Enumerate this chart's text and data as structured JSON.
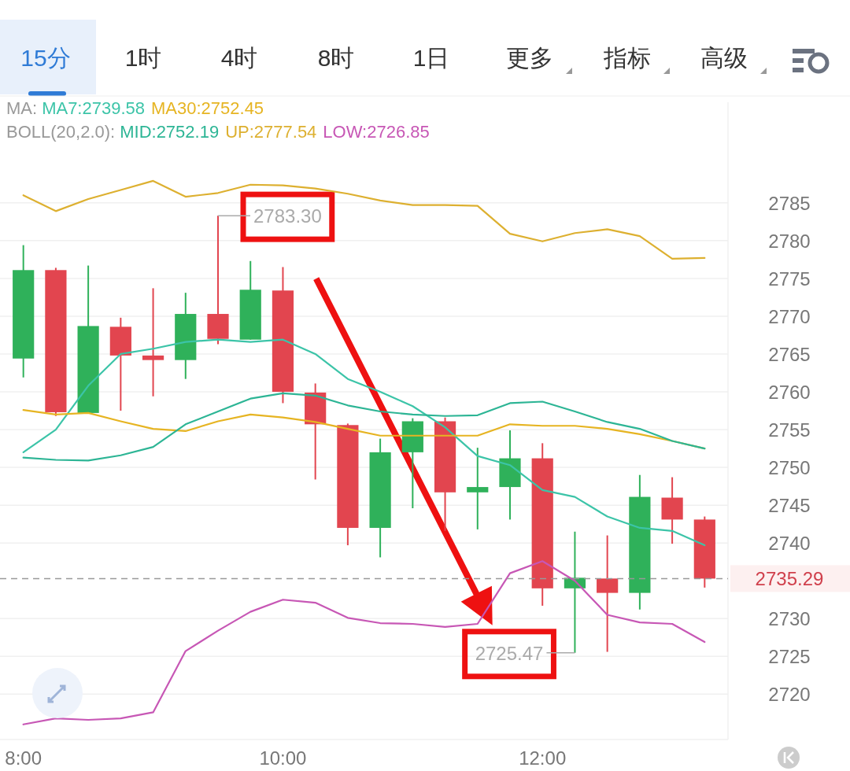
{
  "chart_data": {
    "type": "candlestick",
    "x": [
      8,
      8.25,
      8.5,
      8.75,
      9,
      9.25,
      9.5,
      9.75,
      10,
      10.25,
      10.5,
      10.75,
      11,
      11.25,
      11.5,
      11.75,
      12,
      12.25,
      12.5,
      12.75,
      13,
      13.25
    ],
    "ohlc": [
      [
        2764.4,
        2779.4,
        2761.9,
        2776.1
      ],
      [
        2776.1,
        2776.4,
        2756.8,
        2757.3
      ],
      [
        2757.2,
        2776.7,
        2757.2,
        2768.7
      ],
      [
        2768.6,
        2769.8,
        2757.5,
        2764.8
      ],
      [
        2764.8,
        2773.7,
        2759.4,
        2764.2
      ],
      [
        2764.2,
        2773.1,
        2761.7,
        2770.3
      ],
      [
        2770.3,
        2783.3,
        2766.3,
        2767.0
      ],
      [
        2766.9,
        2777.3,
        2766.9,
        2773.5
      ],
      [
        2773.4,
        2776.5,
        2758.5,
        2760.0
      ],
      [
        2759.9,
        2761.1,
        2748.4,
        2755.7
      ],
      [
        2755.6,
        2755.8,
        2739.7,
        2742.0
      ],
      [
        2742.0,
        2753.8,
        2738.1,
        2752.0
      ],
      [
        2752.0,
        2756.5,
        2744.6,
        2756.1
      ],
      [
        2756.1,
        2756.6,
        2741.6,
        2746.7
      ],
      [
        2746.7,
        2752.6,
        2741.8,
        2747.4
      ],
      [
        2747.4,
        2754.9,
        2743.1,
        2751.2
      ],
      [
        2751.2,
        2753.2,
        2731.7,
        2734.0
      ],
      [
        2734.0,
        2741.5,
        2725.47,
        2735.4
      ],
      [
        2735.3,
        2741.0,
        2725.6,
        2733.4
      ],
      [
        2733.4,
        2749.0,
        2731.2,
        2746.1
      ],
      [
        2746.0,
        2748.7,
        2739.9,
        2743.1
      ],
      [
        2743.1,
        2743.5,
        2734.1,
        2735.29
      ]
    ],
    "colors": [
      "#2fb15a",
      "#e2454f",
      "#2fb15a",
      "#e2454f",
      "#e2454f",
      "#2fb15a",
      "#e2454f",
      "#2fb15a",
      "#e2454f",
      "#e2454f",
      "#e2454f",
      "#2fb15a",
      "#2fb15a",
      "#e2454f",
      "#2fb15a",
      "#2fb15a",
      "#e2454f",
      "#2fb15a",
      "#e2454f",
      "#2fb15a",
      "#e2454f",
      "#e2454f"
    ],
    "series": [
      {
        "name": "MA7:2739.58",
        "type": "line",
        "color": "#3cc4a8",
        "values": [
          2752.0,
          2755.0,
          2760.8,
          2765.0,
          2765.7,
          2766.6,
          2766.9,
          2766.6,
          2766.9,
          2765.0,
          2761.7,
          2760.0,
          2758.1,
          2755.3,
          2751.5,
          2750.3,
          2747.0,
          2746.1,
          2743.5,
          2742.0,
          2741.6,
          2739.7
        ]
      },
      {
        "name": "MA30:2752.45",
        "type": "line",
        "color": "#e6b422",
        "values": [
          2757.6,
          2757.0,
          2757.2,
          2756.1,
          2755.1,
          2754.8,
          2756.1,
          2757.0,
          2756.6,
          2756.0,
          2755.1,
          2754.2,
          2754.2,
          2754.2,
          2754.2,
          2755.7,
          2755.5,
          2755.5,
          2755.1,
          2754.4,
          2753.5,
          2752.5
        ]
      },
      {
        "name": "MID:2752.19",
        "type": "line",
        "color": "#2db595",
        "values": [
          2751.3,
          2751.0,
          2750.9,
          2751.6,
          2752.7,
          2755.7,
          2757.4,
          2759.1,
          2759.8,
          2759.5,
          2758.2,
          2757.4,
          2757.0,
          2756.8,
          2756.9,
          2758.5,
          2758.7,
          2757.4,
          2756.0,
          2755.1,
          2753.5,
          2752.5
        ]
      },
      {
        "name": "UP:2777.54",
        "type": "line",
        "color": "#ddb030",
        "values": [
          2786.0,
          2783.9,
          2785.5,
          2786.7,
          2787.9,
          2785.8,
          2786.3,
          2787.4,
          2787.3,
          2786.9,
          2786.2,
          2785.3,
          2784.7,
          2784.7,
          2784.6,
          2780.9,
          2779.9,
          2781.0,
          2781.5,
          2780.6,
          2777.6,
          2777.7
        ]
      },
      {
        "name": "LOW:2726.85",
        "type": "line",
        "color": "#c757b5",
        "values": [
          2716.0,
          2716.8,
          2716.6,
          2716.8,
          2717.6,
          2725.7,
          2728.4,
          2730.9,
          2732.5,
          2732.1,
          2730.1,
          2729.4,
          2729.3,
          2728.9,
          2729.3,
          2736.0,
          2737.6,
          2735.0,
          2730.5,
          2729.5,
          2729.3,
          2726.9
        ]
      }
    ],
    "xlim": [
      7.82,
      13.43
    ],
    "ylim": [
      2714,
      2798.3
    ],
    "xticks": [
      {
        "value": 8,
        "label": "8:00"
      },
      {
        "value": 10,
        "label": "10:00"
      },
      {
        "value": 12,
        "label": "12:00"
      }
    ],
    "yticks": [
      2720,
      2725,
      2730,
      2740,
      2745,
      2750,
      2755,
      2760,
      2765,
      2770,
      2775,
      2780,
      2785
    ],
    "grid": "y",
    "legend": "top",
    "ref_lines": [
      {
        "axis": "y",
        "value": 2735.29,
        "label": "2735.29",
        "color": "#999999",
        "line_style": "dashed"
      }
    ],
    "annotations": [
      "15分",
      "1时",
      "4时",
      "8时",
      "1日",
      "更多",
      "指标",
      "高级",
      "MA:",
      "BOLL(20,2.0):",
      {
        "text": "2783.30",
        "x": 9.5,
        "y": 2783.3
      },
      {
        "text": "2725.47",
        "x": 12.25,
        "y": 2725.47
      }
    ]
  }
}
